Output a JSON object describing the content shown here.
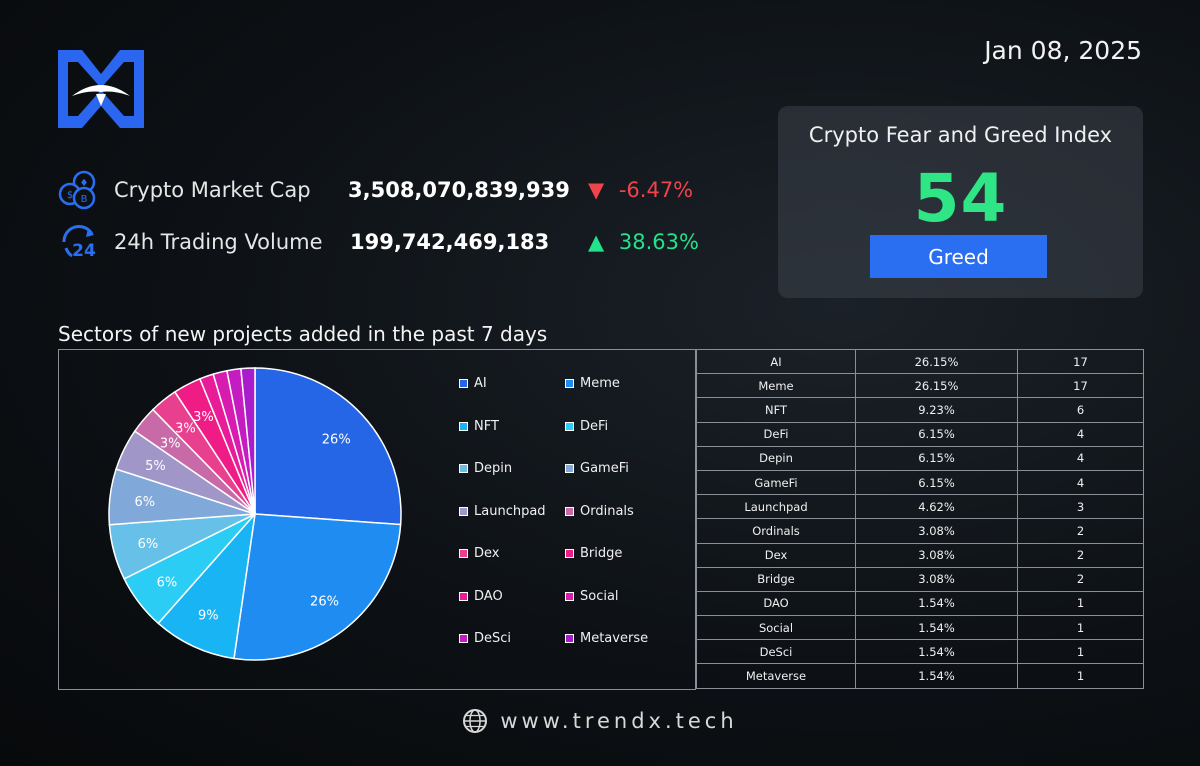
{
  "date": "Jan 08, 2025",
  "colors": {
    "accent": "#2a6ef2",
    "up": "#22e28a",
    "down": "#f0434a",
    "greed": "#2ee686"
  },
  "metrics": {
    "market_cap": {
      "label": "Crypto Market Cap",
      "value": "3,508,070,839,939",
      "change": "-6.47%",
      "direction": "down",
      "arrow": "▼",
      "icon": "coins-icon"
    },
    "volume": {
      "label": "24h Trading Volume",
      "value": "199,742,469,183",
      "change": "38.63%",
      "direction": "up",
      "arrow": "▲",
      "icon": "24h-cycle-icon"
    }
  },
  "fear_greed": {
    "title": "Crypto Fear and Greed Index",
    "value": "54",
    "label": "Greed"
  },
  "section_title": "Sectors of new projects added in the past 7 days",
  "footer": {
    "site": "www.trendx.tech",
    "icon": "globe-icon"
  },
  "chart_data": {
    "type": "pie",
    "title": "Sectors of new projects added in the past 7 days",
    "legend_position": "right",
    "slices": [
      {
        "label": "AI",
        "percent": "26.15%",
        "value": 26.15,
        "count": 17,
        "pie_label": "26%",
        "color": "#2566e6"
      },
      {
        "label": "Meme",
        "percent": "26.15%",
        "value": 26.15,
        "count": 17,
        "pie_label": "26%",
        "color": "#1f8cf2"
      },
      {
        "label": "NFT",
        "percent": "9.23%",
        "value": 9.23,
        "count": 6,
        "pie_label": "9%",
        "color": "#19b4f4"
      },
      {
        "label": "DeFi",
        "percent": "6.15%",
        "value": 6.15,
        "count": 4,
        "pie_label": "6%",
        "color": "#2ccdf5"
      },
      {
        "label": "Depin",
        "percent": "6.15%",
        "value": 6.15,
        "count": 4,
        "pie_label": "6%",
        "color": "#66c0e8"
      },
      {
        "label": "GameFi",
        "percent": "6.15%",
        "value": 6.15,
        "count": 4,
        "pie_label": "6%",
        "color": "#80a8d8"
      },
      {
        "label": "Launchpad",
        "percent": "4.62%",
        "value": 4.62,
        "count": 3,
        "pie_label": "5%",
        "color": "#a196c8"
      },
      {
        "label": "Ordinals",
        "percent": "3.08%",
        "value": 3.08,
        "count": 2,
        "pie_label": "3%",
        "color": "#c86aa8"
      },
      {
        "label": "Dex",
        "percent": "3.08%",
        "value": 3.08,
        "count": 2,
        "pie_label": "3%",
        "color": "#e8408e"
      },
      {
        "label": "Bridge",
        "percent": "3.08%",
        "value": 3.08,
        "count": 2,
        "pie_label": "3%",
        "color": "#f01c86"
      },
      {
        "label": "DAO",
        "percent": "1.54%",
        "value": 1.54,
        "count": 1,
        "pie_label": "",
        "color": "#e81c98"
      },
      {
        "label": "Social",
        "percent": "1.54%",
        "value": 1.54,
        "count": 1,
        "pie_label": "",
        "color": "#d81cb0"
      },
      {
        "label": "DeSci",
        "percent": "1.54%",
        "value": 1.54,
        "count": 1,
        "pie_label": "",
        "color": "#c41cc0"
      },
      {
        "label": "Metaverse",
        "percent": "1.54%",
        "value": 1.54,
        "count": 1,
        "pie_label": "",
        "color": "#a81ccc"
      }
    ]
  }
}
